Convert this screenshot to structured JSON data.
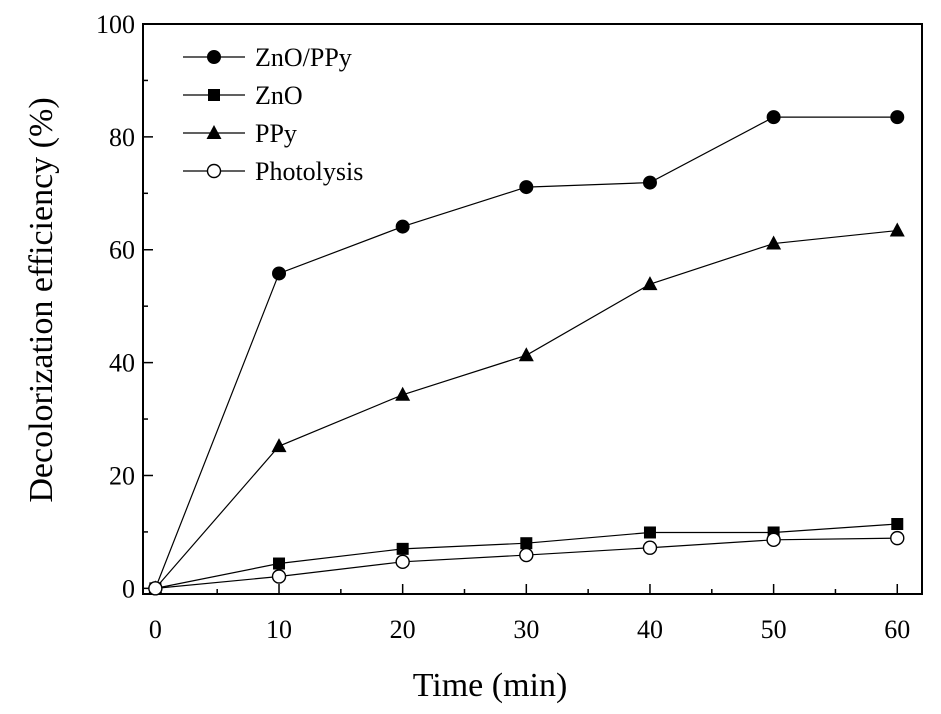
{
  "chart_data": {
    "type": "line",
    "title": "",
    "xlabel": "Time (min)",
    "ylabel": "Decolorization efficiency (%)",
    "xlim": [
      -1,
      62
    ],
    "ylim": [
      -1,
      100
    ],
    "x_ticks": [
      0,
      10,
      20,
      30,
      40,
      50,
      60
    ],
    "y_ticks": [
      0,
      20,
      40,
      60,
      80,
      100
    ],
    "grid": false,
    "legend_position": "top-left",
    "x": [
      0,
      10,
      20,
      30,
      40,
      50,
      60
    ],
    "series": [
      {
        "name": "ZnO/PPy",
        "marker": "filled-circle",
        "values": [
          0,
          55.8,
          64.1,
          71.1,
          71.9,
          83.5,
          83.5
        ]
      },
      {
        "name": "ZnO",
        "marker": "filled-square",
        "values": [
          0,
          4.4,
          7.0,
          8.0,
          9.9,
          9.9,
          11.4
        ]
      },
      {
        "name": "PPy",
        "marker": "filled-triangle",
        "values": [
          0,
          25.2,
          34.3,
          41.3,
          53.9,
          61.1,
          63.4
        ]
      },
      {
        "name": "Photolysis",
        "marker": "open-circle",
        "values": [
          0,
          2.1,
          4.7,
          5.9,
          7.2,
          8.6,
          8.9
        ]
      }
    ]
  }
}
